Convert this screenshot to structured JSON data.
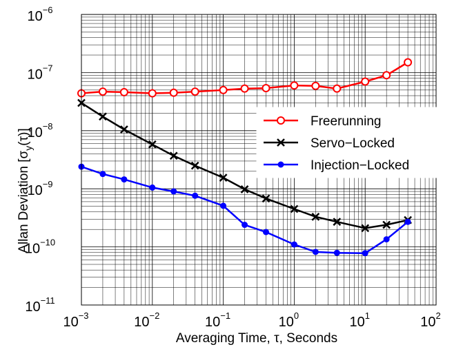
{
  "chart_data": {
    "type": "line",
    "title": "",
    "xlabel": "Averaging Time, τ, Seconds",
    "ylabel_parts": [
      "Allan Deviation [σ",
      "y",
      "(τ)]"
    ],
    "x_scale": "log",
    "y_scale": "log",
    "xlim": [
      0.001,
      100
    ],
    "ylim": [
      1e-11,
      1e-06
    ],
    "x_ticks": [
      {
        "value": 0.001,
        "base": "10",
        "exp": "−3"
      },
      {
        "value": 0.01,
        "base": "10",
        "exp": "−2"
      },
      {
        "value": 0.1,
        "base": "10",
        "exp": "−1"
      },
      {
        "value": 1,
        "base": "10",
        "exp": "0"
      },
      {
        "value": 10,
        "base": "10",
        "exp": "1"
      },
      {
        "value": 100,
        "base": "10",
        "exp": "2"
      }
    ],
    "y_ticks": [
      {
        "value": 1e-11,
        "base": "10",
        "exp": "−11"
      },
      {
        "value": 1e-10,
        "base": "10",
        "exp": "−10"
      },
      {
        "value": 1e-09,
        "base": "10",
        "exp": "−9"
      },
      {
        "value": 1e-08,
        "base": "10",
        "exp": "−8"
      },
      {
        "value": 1e-07,
        "base": "10",
        "exp": "−7"
      },
      {
        "value": 1e-06,
        "base": "10",
        "exp": "−6"
      }
    ],
    "grid": true,
    "legend_position": "right",
    "x": [
      0.001,
      0.002,
      0.004,
      0.01,
      0.02,
      0.04,
      0.1,
      0.2,
      0.4,
      1,
      2,
      4,
      10,
      20,
      40
    ],
    "series": [
      {
        "name": "Freerunning",
        "color": "#ff0000",
        "marker": "circle",
        "values": [
          4.4e-08,
          4.7e-08,
          4.6e-08,
          4.4e-08,
          4.5e-08,
          4.7e-08,
          5e-08,
          5.3e-08,
          5.4e-08,
          6e-08,
          5.9e-08,
          5.3e-08,
          7e-08,
          9e-08,
          1.5e-07
        ]
      },
      {
        "name": "Servo−Locked",
        "color": "#000000",
        "marker": "x",
        "values": [
          3e-08,
          1.75e-08,
          1.05e-08,
          5.8e-09,
          3.7e-09,
          2.5e-09,
          1.55e-09,
          9.8e-10,
          6.8e-10,
          4.5e-10,
          3.3e-10,
          2.7e-10,
          2.1e-10,
          2.4e-10,
          2.9e-10
        ]
      },
      {
        "name": "Injection−Locked",
        "color": "#0000ff",
        "marker": "dot",
        "values": [
          2.4e-09,
          1.8e-09,
          1.45e-09,
          1.05e-09,
          9e-10,
          7.6e-10,
          5.1e-10,
          2.4e-10,
          1.8e-10,
          1.1e-10,
          8.2e-11,
          7.9e-11,
          7.8e-11,
          1.35e-10,
          2.7e-10
        ]
      }
    ]
  }
}
